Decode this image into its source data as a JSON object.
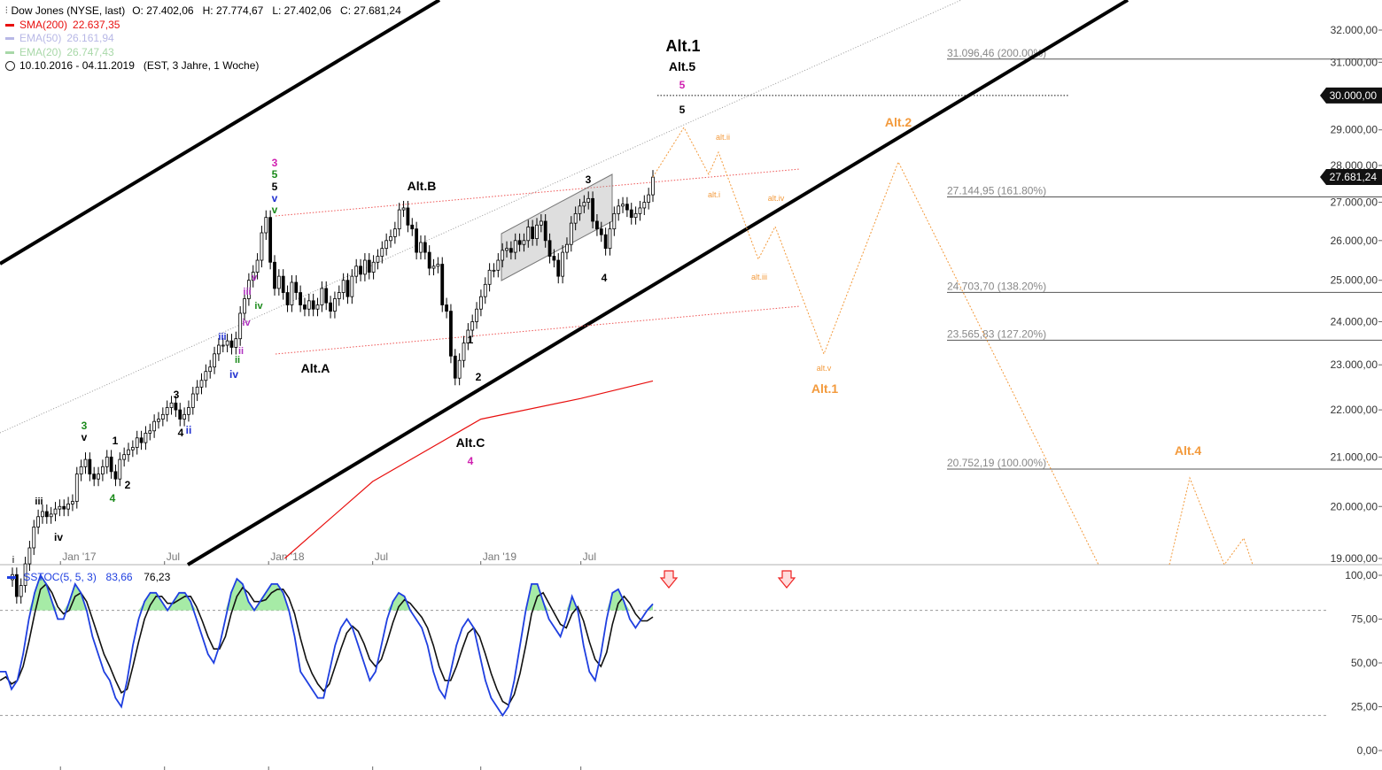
{
  "header": {
    "instrument": "Dow Jones (NYSE, last)",
    "ohlc": "O: 27.402,06   H: 27.774,67   L: 27.402,06   C: 27.681,24",
    "range": "10.10.2016 - 04.11.2019",
    "range_meta": "(EST, 3 Jahre, 1 Woche)"
  },
  "indicators": [
    {
      "label": "SMA(200)",
      "value": "22.637,35",
      "color": "#e8100f"
    },
    {
      "label": "EMA(50)",
      "value": "26.161,94",
      "color": "#b8b8e6"
    },
    {
      "label": "EMA(20)",
      "value": "26.747,43",
      "color": "#a8d8a8"
    }
  ],
  "oscillator": {
    "label": "SSTOC(5, 5, 3)",
    "k_value": "83,66",
    "d_value": "76,23",
    "k_color": "#1f3fe0",
    "d_color": "#111111",
    "zone_color": "#a6eba6"
  },
  "chart_data": {
    "type": "candlestick",
    "x_range": [
      "2016-10-10",
      "2019-11-04"
    ],
    "y_axis_labels": [
      "32.000,00",
      "31.000,00",
      "30.000,00",
      "29.000,00",
      "28.000,00",
      "27.000,00",
      "26.000,00",
      "25.000,00",
      "24.000,00",
      "23.000,00",
      "22.000,00",
      "21.000,00",
      "20.000,00",
      "19.000,00"
    ],
    "y_axis_values": [
      32000,
      31000,
      30000,
      29000,
      28000,
      27000,
      26000,
      25000,
      24000,
      23000,
      22000,
      21000,
      20000,
      19000
    ],
    "x_axis_labels": [
      "Jan '17",
      "Jul",
      "Jan '18",
      "Jul",
      "Jan '19",
      "Jul"
    ],
    "price_markers": [
      {
        "label": "30.000,00",
        "value": 30000,
        "style": "black"
      },
      {
        "label": "27.681,24",
        "value": 27681.24,
        "style": "black"
      }
    ],
    "fib_levels": [
      {
        "label": "31.096,46 (200.00%)",
        "value": 31096.46
      },
      {
        "label": "27.144,95 (161.80%)",
        "value": 27144.95
      },
      {
        "label": "24.703,70 (138.20%)",
        "value": 24703.7
      },
      {
        "label": "23.565,83 (127.20%)",
        "value": 23565.83
      },
      {
        "label": "20.752,19 (100.00%)",
        "value": 20752.19
      }
    ],
    "close_series": [
      18700,
      18300,
      18500,
      18900,
      19200,
      19600,
      19800,
      19900,
      19800,
      19850,
      19950,
      20000,
      19950,
      20050,
      20100,
      20650,
      20800,
      20950,
      20650,
      20550,
      20650,
      20800,
      21000,
      20700,
      20550,
      20950,
      21050,
      21150,
      21200,
      21400,
      21300,
      21500,
      21550,
      21750,
      21800,
      21900,
      22050,
      22150,
      22000,
      21800,
      21900,
      22050,
      22350,
      22500,
      22650,
      22850,
      22950,
      23250,
      23450,
      23450,
      23550,
      23400,
      23600,
      24200,
      24550,
      25000,
      25200,
      25500,
      26200,
      26600,
      25450,
      24800,
      25100,
      24700,
      24400,
      24950,
      24700,
      24400,
      24300,
      24500,
      24300,
      24400,
      24800,
      24450,
      24250,
      24550,
      24700,
      25000,
      24600,
      25100,
      25350,
      25150,
      25500,
      25200,
      25450,
      25600,
      25800,
      26000,
      26100,
      26300,
      26800,
      26850,
      26400,
      26300,
      25700,
      25950,
      25700,
      25300,
      25350,
      25400,
      24400,
      24250,
      23200,
      22700,
      23100,
      23500,
      23800,
      24000,
      24300,
      24600,
      24900,
      25250,
      25250,
      25500,
      25750,
      25800,
      25700,
      26000,
      25900,
      26000,
      26350,
      26050,
      26400,
      26500,
      26000,
      25600,
      25500,
      25100,
      25700,
      25900,
      26450,
      26700,
      26900,
      27000,
      27100,
      26500,
      26300,
      26150,
      25800,
      26300,
      26700,
      26900,
      26950,
      26800,
      26600,
      26700,
      26850,
      27000,
      27200,
      27680
    ],
    "sma200": [
      {
        "date": "2018-01-29",
        "value": 19000
      },
      {
        "date": "2018-07-02",
        "value": 20500
      },
      {
        "date": "2019-01-07",
        "value": 21800
      },
      {
        "date": "2019-07-01",
        "value": 22250
      },
      {
        "date": "2019-11-04",
        "value": 22637
      }
    ],
    "wave_labels": [
      "i",
      "iii",
      "iv",
      "3",
      "v",
      "4",
      "1",
      "2",
      "3",
      "4",
      "ii",
      "iii",
      "iv",
      "ii",
      "ii",
      "iv",
      "iii",
      "v",
      "iv",
      "3",
      "5",
      "5",
      "v",
      "v",
      "Alt.A",
      "Alt.B",
      "Alt.C",
      "4",
      "1",
      "2",
      "3",
      "4",
      "Alt.1",
      "Alt.5",
      "5",
      "5",
      "Alt.2",
      "alt.i",
      "alt.ii",
      "alt.iii",
      "alt.iv",
      "alt.v",
      "Alt.1",
      "Alt.4"
    ],
    "projection_labels": [
      "alt.i",
      "alt.ii",
      "alt.iii",
      "alt.iv",
      "alt.v",
      "Alt.1",
      "Alt.2",
      "Alt.4"
    ]
  },
  "oscillator_data": {
    "y_axis_labels": [
      "100,00",
      "75,00",
      "50,00",
      "25,00",
      "0,00"
    ],
    "y_axis_values": [
      100,
      75,
      50,
      25,
      0
    ],
    "overbought": 80,
    "oversold": 20,
    "k_series": [
      45,
      45,
      35,
      40,
      55,
      75,
      90,
      100,
      95,
      85,
      75,
      75,
      85,
      95,
      90,
      80,
      65,
      55,
      45,
      40,
      30,
      25,
      40,
      60,
      75,
      85,
      90,
      90,
      85,
      80,
      85,
      90,
      90,
      85,
      75,
      65,
      55,
      50,
      60,
      75,
      90,
      98,
      95,
      85,
      80,
      85,
      90,
      95,
      95,
      90,
      80,
      65,
      45,
      40,
      35,
      30,
      30,
      45,
      60,
      70,
      75,
      70,
      60,
      50,
      40,
      45,
      60,
      75,
      85,
      90,
      88,
      80,
      75,
      70,
      60,
      45,
      35,
      30,
      45,
      60,
      70,
      75,
      70,
      55,
      40,
      30,
      25,
      20,
      25,
      40,
      60,
      80,
      95,
      95,
      85,
      75,
      70,
      65,
      75,
      88,
      80,
      60,
      45,
      40,
      55,
      75,
      90,
      92,
      85,
      75,
      70,
      75,
      80,
      83.66
    ],
    "d_series": [
      40,
      42,
      38,
      40,
      48,
      62,
      78,
      92,
      95,
      90,
      82,
      78,
      80,
      88,
      90,
      85,
      75,
      65,
      55,
      48,
      40,
      33,
      35,
      48,
      62,
      75,
      83,
      88,
      88,
      84,
      84,
      86,
      88,
      88,
      82,
      74,
      65,
      58,
      58,
      65,
      78,
      88,
      93,
      90,
      85,
      85,
      86,
      90,
      92,
      92,
      87,
      78,
      64,
      52,
      44,
      38,
      34,
      38,
      48,
      58,
      67,
      71,
      68,
      61,
      52,
      48,
      52,
      62,
      73,
      82,
      86,
      84,
      80,
      76,
      70,
      60,
      48,
      40,
      40,
      48,
      58,
      67,
      70,
      65,
      55,
      44,
      35,
      28,
      26,
      32,
      44,
      60,
      78,
      88,
      90,
      84,
      78,
      72,
      70,
      78,
      82,
      74,
      62,
      52,
      48,
      56,
      72,
      84,
      88,
      84,
      78,
      74,
      74,
      76.23
    ]
  }
}
